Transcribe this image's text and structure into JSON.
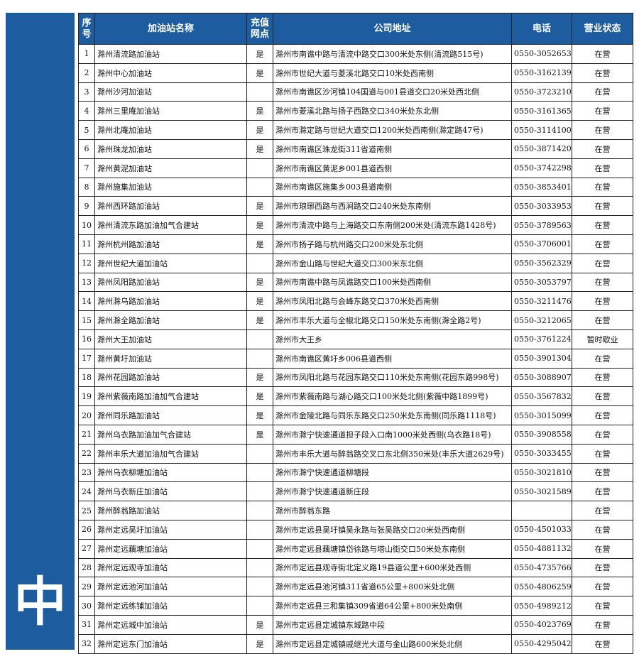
{
  "sidebar_label": "中",
  "table": {
    "header": [
      "序号",
      "加油站名称",
      "充值网点",
      "公司地址",
      "电话",
      "营业状态"
    ],
    "rows": [
      [
        1,
        "滁州清流路加油站",
        "是",
        "滁州市南谯中路与清流中路交口300米处东侧(清流路515号)",
        "0550-3052653",
        "在营"
      ],
      [
        2,
        "滁州中心加油站",
        "是",
        "滁州市世纪大道与菱溪北路交口10米处西南侧",
        "0550-3162139",
        "在营"
      ],
      [
        3,
        "滁州沙河加油站",
        null,
        "滁州市南谯区沙河镇104国道与001县道交口20米处西北侧",
        "0550-3723210",
        "在营"
      ],
      [
        4,
        "滁州三里庵加油站",
        "是",
        "滁州市菱溪北路与扬子西路交口340米处东北侧",
        "0550-3161365",
        "在营"
      ],
      [
        5,
        "滁州北庵加油站",
        "是",
        "滁州市滁定路与世纪大道交口1200米处西南侧(滁定路47号)",
        "0550-3114100",
        "在营"
      ],
      [
        6,
        "滁州珠龙加油站",
        "是",
        "滁州市南谯区珠龙街311省道南侧",
        "0550-3871420",
        "在营"
      ],
      [
        7,
        "滁州黄泥加油站",
        null,
        "滁州市南谯区黄泥乡001县道西侧",
        "0550-3742298",
        "在营"
      ],
      [
        8,
        "滁州施集加油站",
        null,
        "滁州市南谯区施集乡003县道南侧",
        "0550-3853401",
        "在营"
      ],
      [
        9,
        "滁州西环路加油站",
        "是",
        "滁州市琅琊西路与西涧路交口240米处东南侧",
        "0550-3033953",
        "在营"
      ],
      [
        10,
        "滁州清流东路加油加气合建站",
        "是",
        "滁州市清流中路与上海路交口东南侧200米处(清流东路1428号)",
        "0550-3789563",
        "在营"
      ],
      [
        11,
        "滁州杭州路加油站",
        "是",
        "滁州市扬子路与杭州路交口200米处东北侧",
        "0550-3706001",
        "在营"
      ],
      [
        12,
        "滁州世纪大道加油站",
        null,
        "滁州市金山路与世纪大道交口300米东北侧",
        "0550-3562329",
        "在营"
      ],
      [
        13,
        "滁州凤阳路加油站",
        "是",
        "滁州市南谯中路与凤谯路交口100米处西南侧",
        "0550-3053797",
        "在营"
      ],
      [
        14,
        "滁州滁乌路加油站",
        "是",
        "滁州市凤阳北路与会峰东路交口370米处西南侧",
        "0550-3211476",
        "在营"
      ],
      [
        15,
        "滁州滁全路加油站",
        "是",
        "滁州市丰乐大道与全椒北路交口150米处东南侧(滁全路2号)",
        "0550-3212065",
        "在营"
      ],
      [
        16,
        "滁州大王加油站",
        null,
        "滁州市大王乡",
        "0550-3761224",
        "暂时歇业"
      ],
      [
        17,
        "滁州黄圩加油站",
        null,
        "滁州市南谯区黄圩乡006县道西侧",
        "0550-3901304",
        "在营"
      ],
      [
        18,
        "滁州花园路加油站",
        "是",
        "滁州市凤阳北路与花园东路交口110米处东南侧(花园东路998号)",
        "0550-3088907",
        "在营"
      ],
      [
        19,
        "滁州紫薇南路加油加气合建站",
        "是",
        "滁州市紫薇南路与湖心路交口100米处北侧(紫薇中路1899号)",
        "0550-3567832",
        "在营"
      ],
      [
        20,
        "滁州同乐路加油站",
        "是",
        "滁州市金陵北路与同乐东路交口250米处东南侧(同乐路1118号)",
        "0550-3015099",
        "在营"
      ],
      [
        21,
        "滁州乌衣路加油加气合建站",
        "是",
        "滁州市滁宁快速通道担子段入口南1000米处西侧(乌衣路18号)",
        "0550-3908558",
        "在营"
      ],
      [
        22,
        "滁州丰乐大道加油加气合建站",
        null,
        "滁州市丰乐大道与醉翁路交叉口东北侧350米处(丰乐大道2629号)",
        "0550-3033455",
        "在营"
      ],
      [
        23,
        "滁州乌衣柳塘加油站",
        null,
        "滁州市滁宁快速通道柳塘段",
        "0550-3021810",
        "在营"
      ],
      [
        24,
        "滁州乌衣新庄加油站",
        null,
        "滁州市滁宁快速通道新庄段",
        "0550-3021589",
        "在营"
      ],
      [
        25,
        "滁州醉翁路加油站",
        null,
        "滁州市醉翁东路",
        null,
        "在营"
      ],
      [
        26,
        "滁州定远吴圩加油站",
        null,
        "滁州市定远县吴圩镇吴永路与张吴路交口20米处西南侧",
        "0550-4501033",
        "在营"
      ],
      [
        27,
        "滁州定远藕塘加油站",
        null,
        "滁州市定远县藕塘镇岱徐路与塔山街交口50米处东南侧",
        "0550-4881132",
        "在营"
      ],
      [
        28,
        "滁州定远观寺加油站",
        null,
        "滁州市定远县观寺街北定义路19县道公里+600米处西侧",
        "0550-4735766",
        "在营"
      ],
      [
        29,
        "滁州定远池河加油站",
        null,
        "滁州市定远县池河镇311省道65公里+800米处北侧",
        "0550-4806259",
        "在营"
      ],
      [
        30,
        "滁州定远练铺加油站",
        null,
        "滁州市定远县三和集镇309省道64公里+800米处南侧",
        "0550-4989212",
        "在营"
      ],
      [
        31,
        "滁州定远城中加油站",
        "是",
        "滁州市定远县定城镇东城路中段",
        "0550-4023769",
        "在营"
      ],
      [
        32,
        "滁州定远东门加油站",
        "是",
        "滁州市定远县定城镇戚继光大道与金山路600米处北侧",
        "0550-4295042",
        "在营"
      ]
    ]
  }
}
